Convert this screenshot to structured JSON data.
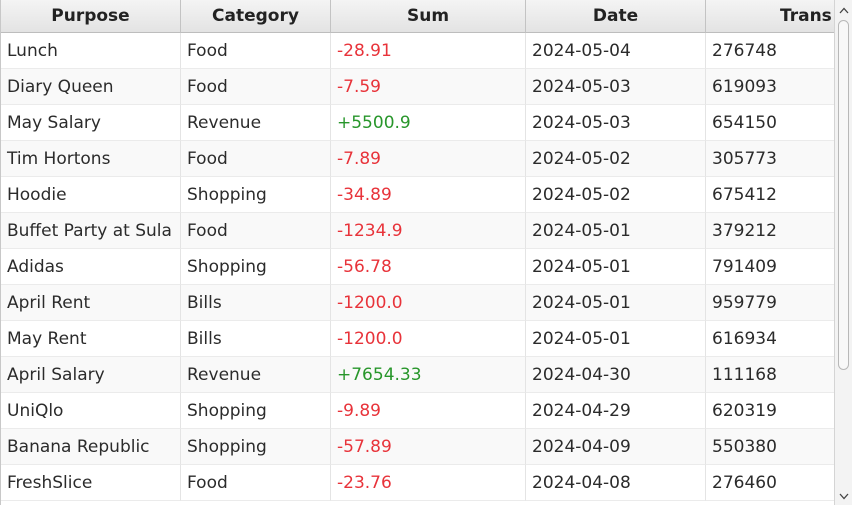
{
  "table": {
    "columns": [
      "Purpose",
      "Category",
      "Sum",
      "Date",
      "Trans"
    ],
    "rows": [
      {
        "purpose": "Lunch",
        "category": "Food",
        "sum": "-28.91",
        "sign": "neg",
        "date": "2024-05-04",
        "trans": "276748"
      },
      {
        "purpose": "Diary Queen",
        "category": "Food",
        "sum": "-7.59",
        "sign": "neg",
        "date": "2024-05-03",
        "trans": "619093"
      },
      {
        "purpose": "May Salary",
        "category": "Revenue",
        "sum": "+5500.9",
        "sign": "pos",
        "date": "2024-05-03",
        "trans": "654150"
      },
      {
        "purpose": "Tim Hortons",
        "category": "Food",
        "sum": "-7.89",
        "sign": "neg",
        "date": "2024-05-02",
        "trans": "305773"
      },
      {
        "purpose": "Hoodie",
        "category": "Shopping",
        "sum": "-34.89",
        "sign": "neg",
        "date": "2024-05-02",
        "trans": "675412"
      },
      {
        "purpose": "Buffet Party at Sula",
        "category": "Food",
        "sum": "-1234.9",
        "sign": "neg",
        "date": "2024-05-01",
        "trans": "379212"
      },
      {
        "purpose": "Adidas",
        "category": "Shopping",
        "sum": "-56.78",
        "sign": "neg",
        "date": "2024-05-01",
        "trans": "791409"
      },
      {
        "purpose": "April Rent",
        "category": "Bills",
        "sum": "-1200.0",
        "sign": "neg",
        "date": "2024-05-01",
        "trans": "959779"
      },
      {
        "purpose": "May Rent",
        "category": "Bills",
        "sum": "-1200.0",
        "sign": "neg",
        "date": "2024-05-01",
        "trans": "616934"
      },
      {
        "purpose": "April Salary",
        "category": "Revenue",
        "sum": "+7654.33",
        "sign": "pos",
        "date": "2024-04-30",
        "trans": "111168"
      },
      {
        "purpose": "UniQlo",
        "category": "Shopping",
        "sum": "-9.89",
        "sign": "neg",
        "date": "2024-04-29",
        "trans": "620319"
      },
      {
        "purpose": "Banana Republic",
        "category": "Shopping",
        "sum": "-57.89",
        "sign": "neg",
        "date": "2024-04-09",
        "trans": "550380"
      },
      {
        "purpose": "FreshSlice",
        "category": "Food",
        "sum": "-23.76",
        "sign": "neg",
        "date": "2024-04-08",
        "trans": "276460"
      }
    ]
  },
  "colors": {
    "negative": "#e8333a",
    "positive": "#28962b"
  },
  "scrollbar": {
    "up_icon": "chevron-up-icon",
    "down_icon": "chevron-down-icon"
  }
}
